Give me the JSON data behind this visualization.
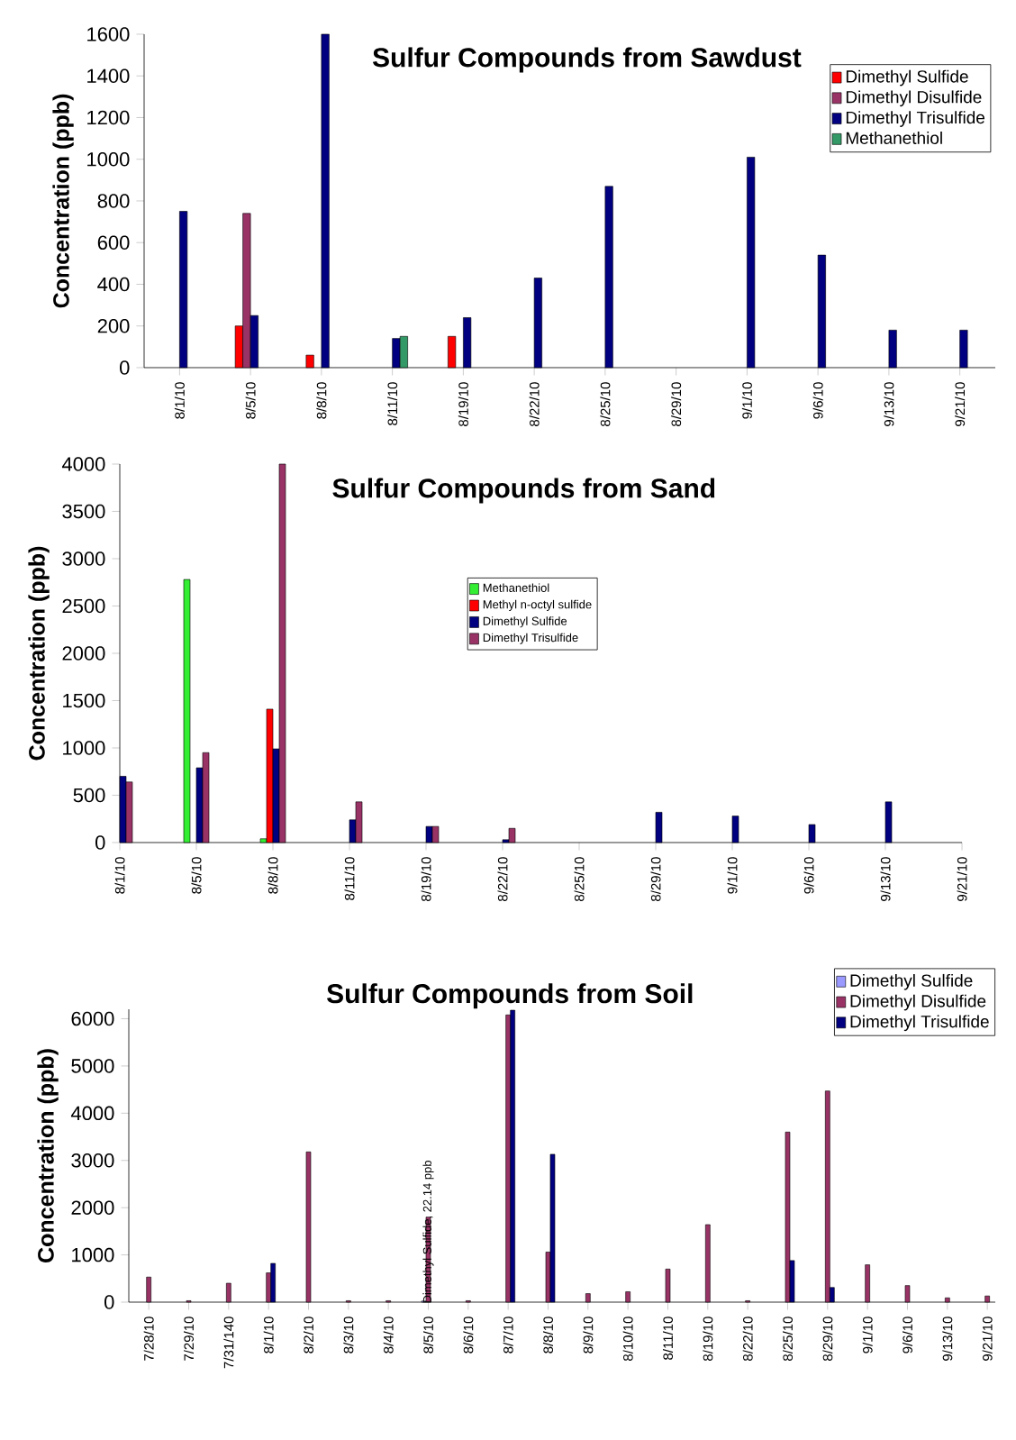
{
  "chart_data": [
    {
      "type": "bar",
      "title": "Sulfur Compounds from Sawdust",
      "ylabel": "Concentration (ppb)",
      "categories": [
        "8/1/10",
        "8/5/10",
        "8/8/10",
        "8/11/10",
        "8/19/10",
        "8/22/10",
        "8/25/10",
        "8/29/10",
        "9/1/10",
        "9/6/10",
        "9/13/10",
        "9/21/10"
      ],
      "series": [
        {
          "name": "Dimethyl Sulfide",
          "color": "#ff0000",
          "values": [
            null,
            200,
            60,
            null,
            150,
            null,
            null,
            null,
            null,
            null,
            null,
            null
          ]
        },
        {
          "name": "Dimethyl Disulfide",
          "color": "#993366",
          "values": [
            null,
            740,
            null,
            null,
            null,
            null,
            null,
            null,
            null,
            null,
            null,
            null
          ]
        },
        {
          "name": "Dimethyl Trisulfide",
          "color": "#000080",
          "values": [
            750,
            250,
            1600,
            140,
            240,
            430,
            870,
            null,
            1010,
            540,
            180,
            180
          ]
        },
        {
          "name": "Methanethiol",
          "color": "#339966",
          "values": [
            null,
            null,
            null,
            150,
            null,
            null,
            null,
            null,
            null,
            null,
            null,
            null
          ]
        }
      ],
      "ylim": [
        0,
        1600
      ],
      "yticks": [
        0,
        200,
        400,
        600,
        800,
        1000,
        1200,
        1400,
        1600
      ],
      "legend": "top right"
    },
    {
      "type": "bar",
      "title": "Sulfur Compounds  from Sand",
      "ylabel": "Concentration (ppb)",
      "categories": [
        "8/1/10",
        "8/5/10",
        "8/8/10",
        "8/11/10",
        "8/19/10",
        "8/22/10",
        "8/25/10",
        "8/29/10",
        "9/1/10",
        "9/6/10",
        "9/13/10",
        "9/21/10"
      ],
      "series": [
        {
          "name": "Methanethiol",
          "color": "#33ee33",
          "values": [
            null,
            2780,
            40,
            null,
            null,
            null,
            null,
            null,
            null,
            null,
            null,
            null
          ]
        },
        {
          "name": "Methyl n-octyl  sulfide",
          "color": "#ff0000",
          "values": [
            null,
            null,
            1410,
            null,
            null,
            null,
            null,
            null,
            null,
            null,
            null,
            null
          ]
        },
        {
          "name": "Dimethyl Sulfide",
          "color": "#000080",
          "values": [
            700,
            790,
            990,
            240,
            170,
            30,
            null,
            320,
            280,
            190,
            430,
            null
          ]
        },
        {
          "name": "Dimethyl Trisulfide",
          "color": "#993366",
          "values": [
            640,
            950,
            4000,
            430,
            170,
            150,
            null,
            null,
            null,
            null,
            null,
            null
          ]
        }
      ],
      "ylim": [
        0,
        4000
      ],
      "yticks": [
        0,
        500,
        1000,
        1500,
        2000,
        2500,
        3000,
        3500,
        4000
      ],
      "legend": "top"
    },
    {
      "type": "bar",
      "title": "Sulfur Compounds from Soil",
      "ylabel": "Concentration (ppb)",
      "categories": [
        "7/28/10",
        "7/29/10",
        "7/31/140",
        "8/1/10",
        "8/2/10",
        "8/3/10",
        "8/4/10",
        "8/5/10",
        "8/6/10",
        "8/7/10",
        "8/8/10",
        "8/9/10",
        "8/10/10",
        "8/11/10",
        "8/19/10",
        "8/22/10",
        "8/25/10",
        "8/29/10",
        "9/1/10",
        "9/6/10",
        "9/13/10",
        "9/21/10"
      ],
      "series": [
        {
          "name": "Dimethyl Sulfide",
          "color": "#9999ff",
          "values": [
            null,
            null,
            null,
            null,
            null,
            null,
            null,
            22.14,
            null,
            null,
            null,
            null,
            null,
            null,
            null,
            null,
            null,
            null,
            null,
            null,
            null,
            null
          ]
        },
        {
          "name": "Dimethyl Disulfide",
          "color": "#993366",
          "values": [
            530,
            30,
            400,
            620,
            3180,
            30,
            30,
            1800,
            30,
            6080,
            1060,
            180,
            220,
            700,
            1640,
            30,
            3600,
            4470,
            790,
            350,
            90,
            130
          ]
        },
        {
          "name": "Dimethyl Trisulfide",
          "color": "#000080",
          "values": [
            null,
            null,
            null,
            820,
            null,
            null,
            null,
            null,
            null,
            6180,
            3130,
            null,
            null,
            null,
            null,
            null,
            880,
            310,
            null,
            null,
            null,
            null
          ]
        }
      ],
      "ylim": [
        0,
        6200
      ],
      "yticks": [
        0,
        1000,
        2000,
        3000,
        4000,
        5000,
        6000
      ],
      "legend": "top right",
      "annotations": [
        {
          "text": "Dimethyl Sulfide,  22.14  ppb",
          "x": "8/5/10",
          "y": 22.14
        }
      ]
    }
  ]
}
